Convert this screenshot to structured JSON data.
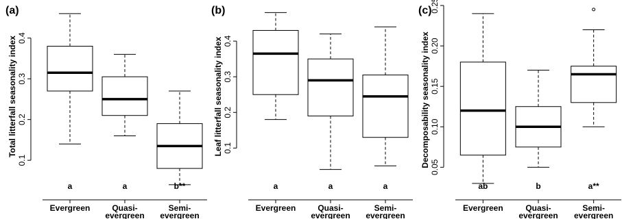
{
  "chart_data": [
    {
      "type": "box",
      "panel_label": "(a)",
      "ylabel": "Total litterfall seasonality index",
      "yticks": [
        0.1,
        0.2,
        0.3,
        0.4
      ],
      "ylim": [
        0.06,
        0.48
      ],
      "categories": [
        "Evergreen",
        "Quasi-evergreen",
        "Semi-evergreen"
      ],
      "category_lines": [
        [
          "Evergreen"
        ],
        [
          "Quasi-",
          "evergreen"
        ],
        [
          "Semi-",
          "evergreen"
        ]
      ],
      "boxes": [
        {
          "whisker_low": 0.14,
          "q1": 0.27,
          "median": 0.315,
          "q3": 0.38,
          "whisker_high": 0.46,
          "outliers": [],
          "letter": "a"
        },
        {
          "whisker_low": 0.16,
          "q1": 0.21,
          "median": 0.25,
          "q3": 0.305,
          "whisker_high": 0.36,
          "outliers": [],
          "letter": "a"
        },
        {
          "whisker_low": 0.04,
          "q1": 0.08,
          "median": 0.135,
          "q3": 0.19,
          "whisker_high": 0.27,
          "outliers": [],
          "letter": "b**"
        }
      ]
    },
    {
      "type": "box",
      "panel_label": "(b)",
      "ylabel": "Leaf litterfall seasonality index",
      "yticks": [
        0.1,
        0.2,
        0.3,
        0.4
      ],
      "ylim": [
        0.02,
        0.5
      ],
      "categories": [
        "Evergreen",
        "Quasi-evergreen",
        "Semi-evergreen"
      ],
      "category_lines": [
        [
          "Evergreen"
        ],
        [
          "Quasi-",
          "evergreen"
        ],
        [
          "Semi-",
          "evergreen"
        ]
      ],
      "boxes": [
        {
          "whisker_low": 0.18,
          "q1": 0.25,
          "median": 0.365,
          "q3": 0.43,
          "whisker_high": 0.48,
          "outliers": [],
          "letter": "a"
        },
        {
          "whisker_low": 0.04,
          "q1": 0.19,
          "median": 0.29,
          "q3": 0.35,
          "whisker_high": 0.42,
          "outliers": [],
          "letter": "a"
        },
        {
          "whisker_low": 0.05,
          "q1": 0.13,
          "median": 0.245,
          "q3": 0.305,
          "whisker_high": 0.44,
          "outliers": [],
          "letter": "a"
        }
      ]
    },
    {
      "type": "box",
      "panel_label": "(c)",
      "ylabel": "Decomposability seasonality index",
      "yticks": [
        0.05,
        0.1,
        0.15,
        0.2,
        0.25
      ],
      "ytick_labels": [
        "0.05",
        "0.10",
        "0.15",
        "0.20",
        "0.25"
      ],
      "ylim": [
        0.03,
        0.25
      ],
      "categories": [
        "Evergreen",
        "Quasi-evergreen",
        "Semi-evergreen"
      ],
      "category_lines": [
        [
          "Evergreen"
        ],
        [
          "Quasi-",
          "evergreen"
        ],
        [
          "Semi-",
          "evergreen"
        ]
      ],
      "boxes": [
        {
          "whisker_low": 0.03,
          "q1": 0.065,
          "median": 0.12,
          "q3": 0.18,
          "whisker_high": 0.24,
          "outliers": [],
          "letter": "ab"
        },
        {
          "whisker_low": 0.05,
          "q1": 0.075,
          "median": 0.1,
          "q3": 0.125,
          "whisker_high": 0.17,
          "outliers": [],
          "letter": "b"
        },
        {
          "whisker_low": 0.1,
          "q1": 0.13,
          "median": 0.165,
          "q3": 0.175,
          "whisker_high": 0.22,
          "outliers": [
            0.245
          ],
          "letter": "a**"
        }
      ]
    }
  ]
}
